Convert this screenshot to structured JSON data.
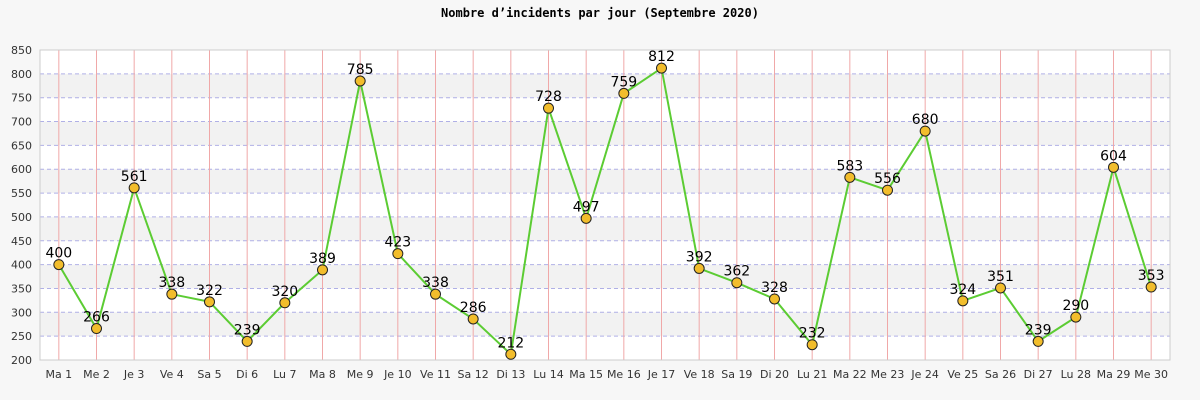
{
  "chart_data": {
    "type": "line",
    "title": "Nombre d’incidents par jour (Septembre 2020)",
    "xlabel": "",
    "ylabel": "",
    "ylim": [
      200,
      850
    ],
    "yticks": [
      200,
      250,
      300,
      350,
      400,
      450,
      500,
      550,
      600,
      650,
      700,
      750,
      800,
      850
    ],
    "grid": true,
    "categories": [
      "Ma 1",
      "Me 2",
      "Je 3",
      "Ve 4",
      "Sa 5",
      "Di 6",
      "Lu 7",
      "Ma 8",
      "Me 9",
      "Je 10",
      "Ve 11",
      "Sa 12",
      "Di 13",
      "Lu 14",
      "Ma 15",
      "Me 16",
      "Je 17",
      "Ve 18",
      "Sa 19",
      "Di 20",
      "Lu 21",
      "Ma 22",
      "Me 23",
      "Je 24",
      "Ve 25",
      "Sa 26",
      "Di 27",
      "Lu 28",
      "Ma 29",
      "Me 30"
    ],
    "series": [
      {
        "values": [
          400,
          266,
          561,
          338,
          322,
          239,
          320,
          389,
          785,
          423,
          338,
          286,
          212,
          728,
          497,
          759,
          812,
          392,
          362,
          328,
          232,
          583,
          556,
          680,
          324,
          351,
          239,
          290,
          604,
          353
        ]
      }
    ],
    "colors": {
      "line": "#5ccc33",
      "marker_fill": "#f2bd2c",
      "marker_stroke": "#222222",
      "vgrid": "#f0a8a8",
      "hgrid": "#b0b0e6",
      "band": "#f2f2f2",
      "plot_bg": "#ffffff"
    }
  }
}
